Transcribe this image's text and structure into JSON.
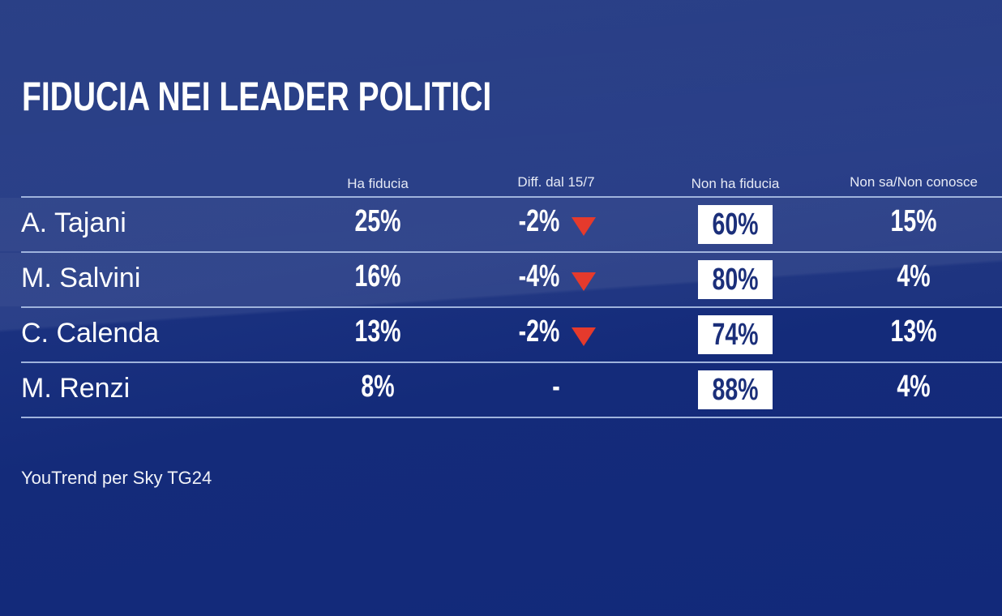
{
  "title": "FIDUCIA NEI LEADER POLITICI",
  "chart_data": {
    "type": "table",
    "title": "FIDUCIA NEI LEADER POLITICI",
    "columns": [
      "Ha fiducia",
      "Diff. dal 15/7",
      "Non ha fiducia",
      "Non sa/Non conosce"
    ],
    "rows": [
      {
        "name": "A. Tajani",
        "ha_fiducia": "25%",
        "diff": "-2%",
        "trend": "down",
        "non_ha_fiducia": "60%",
        "non_sa": "15%"
      },
      {
        "name": "M. Salvini",
        "ha_fiducia": "16%",
        "diff": "-4%",
        "trend": "down",
        "non_ha_fiducia": "80%",
        "non_sa": "4%"
      },
      {
        "name": "C. Calenda",
        "ha_fiducia": "13%",
        "diff": "-2%",
        "trend": "down",
        "non_ha_fiducia": "74%",
        "non_sa": "13%"
      },
      {
        "name": "M. Renzi",
        "ha_fiducia": "8%",
        "diff": "-",
        "trend": "none",
        "non_ha_fiducia": "88%",
        "non_sa": "4%"
      }
    ]
  },
  "footer": "YouTrend per Sky TG24",
  "colors": {
    "background": "#1b2f7a",
    "down_arrow": "#e53a2c",
    "highlight_box": "#ffffff"
  }
}
